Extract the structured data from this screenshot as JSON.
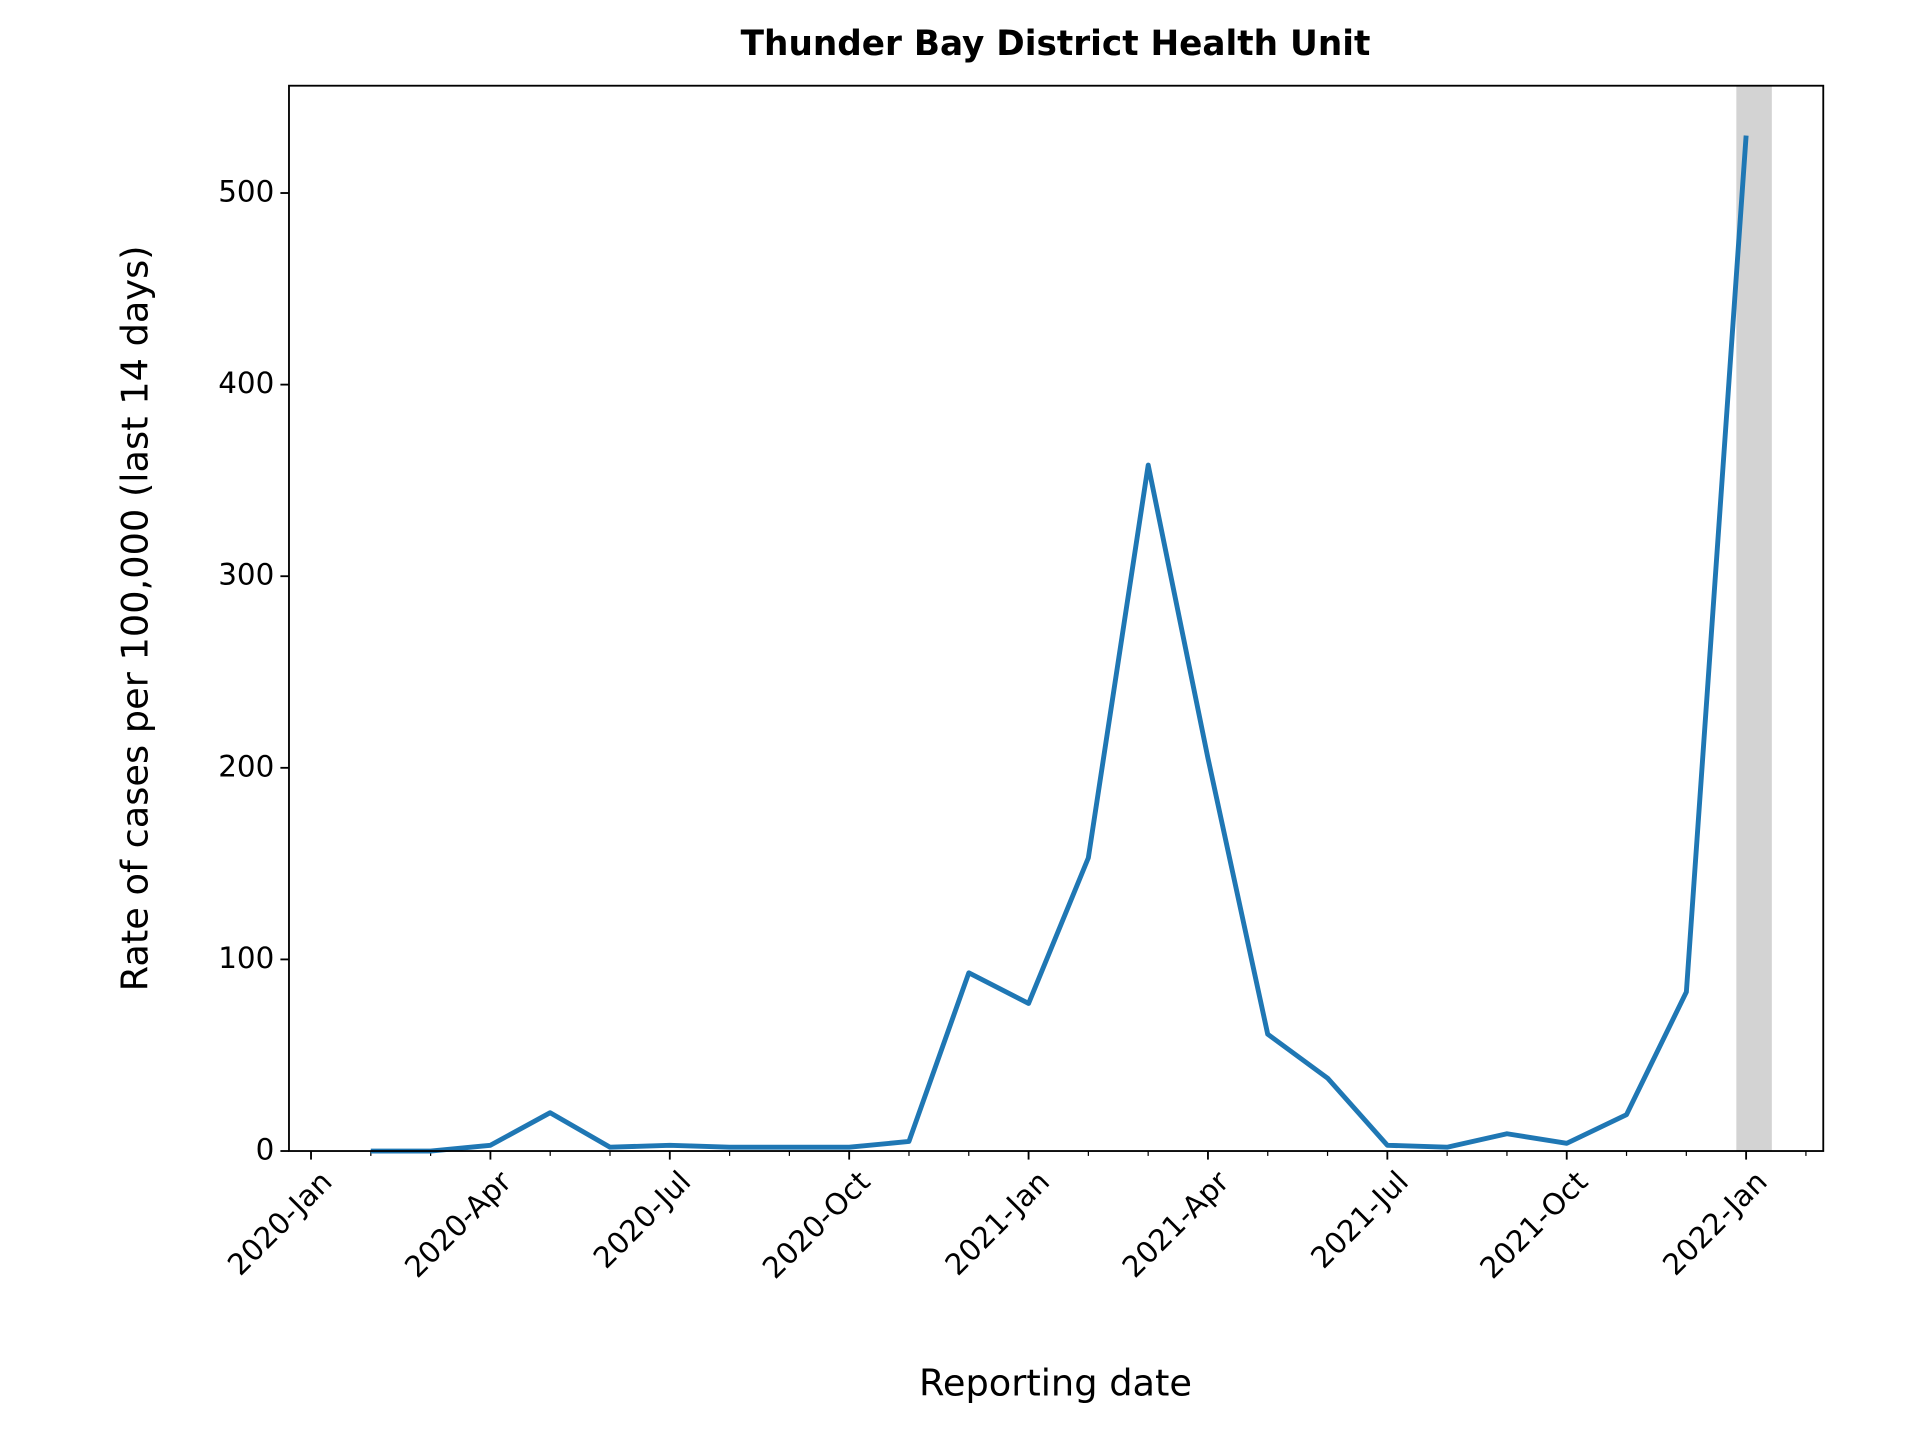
{
  "chart_data": {
    "type": "line",
    "title": "Thunder Bay District Health Unit",
    "x_label": "Reporting date",
    "y_label": "Rate of cases per 100,000 (last 14 days)",
    "x": [
      "2020-02",
      "2020-03",
      "2020-04",
      "2020-05",
      "2020-06",
      "2020-07",
      "2020-08",
      "2020-09",
      "2020-10",
      "2020-11",
      "2020-12",
      "2021-01",
      "2021-02",
      "2021-03",
      "2021-04",
      "2021-05",
      "2021-06",
      "2021-07",
      "2021-08",
      "2021-09",
      "2021-10",
      "2021-11",
      "2021-12",
      "2022-01"
    ],
    "values": [
      0,
      0,
      3,
      20,
      2,
      3,
      2,
      2,
      2,
      5,
      93,
      77,
      153,
      358,
      205,
      61,
      38,
      3,
      2,
      9,
      4,
      19,
      83,
      530
    ],
    "color": "#1f77b4",
    "xlim": [
      "2020-01",
      "2022-01"
    ],
    "xticks": [
      {
        "value": "2020-01",
        "label": "2020-Jan"
      },
      {
        "value": "2020-04",
        "label": "2020-Apr"
      },
      {
        "value": "2020-07",
        "label": "2020-Jul"
      },
      {
        "value": "2020-10",
        "label": "2020-Oct"
      },
      {
        "value": "2021-01",
        "label": "2021-Jan"
      },
      {
        "value": "2021-04",
        "label": "2021-Apr"
      },
      {
        "value": "2021-07",
        "label": "2021-Jul"
      },
      {
        "value": "2021-10",
        "label": "2021-Oct"
      },
      {
        "value": "2022-01",
        "label": "2022-Jan"
      }
    ],
    "ylim": [
      0,
      556
    ],
    "yticks": [
      0,
      100,
      200,
      300,
      400,
      500
    ]
  }
}
